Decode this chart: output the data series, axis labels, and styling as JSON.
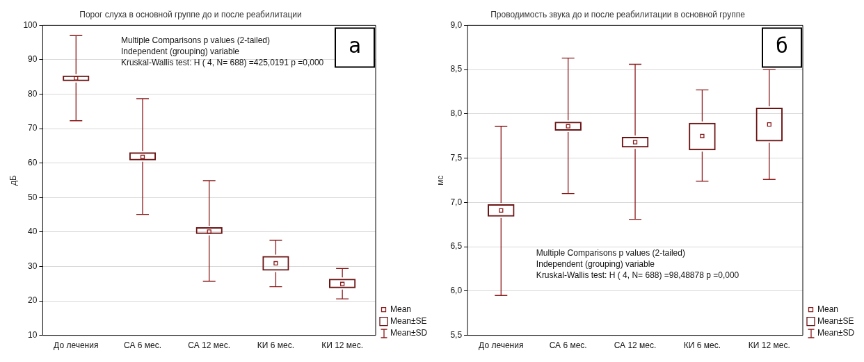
{
  "chart_data": [
    {
      "type": "bar",
      "title": "Порог слуха в основной группе до и после реабилитации",
      "ylabel": "дБ",
      "categories": [
        "До лечения",
        "СА 6 мес.",
        "СА 12 мес.",
        "КИ 6 мес.",
        "КИ 12 мес."
      ],
      "ylim": [
        10,
        100
      ],
      "yticks": [
        10,
        20,
        30,
        40,
        50,
        60,
        70,
        80,
        90,
        100
      ],
      "grid": "y",
      "legend": "bottom right",
      "annotations": [
        "а",
        "Multiple Comparisons p values (2-tailed)",
        "Independent (grouping) variable",
        "Kruskal-Wallis test: H ( 4, N= 688) =425,0191 p =0,000",
        "Mean±SD"
      ],
      "series": [
        {
          "name": "Mean",
          "type": "scatter",
          "marker": "square",
          "color": "#8b1a1a",
          "values": [
            84.6,
            61.8,
            40.1,
            30.9,
            24.9
          ],
          "errors": [
            [
              72.3,
              97
            ],
            [
              45.1,
              78.7
            ],
            [
              25.7,
              54.9
            ],
            [
              24.1,
              37.6
            ],
            [
              20.6,
              29.4
            ]
          ]
        },
        {
          "name": "Mean±SE",
          "type": "bar",
          "color": "#6b1414",
          "base": [
            83.8,
            60.8,
            39.4,
            28.8,
            23.7
          ],
          "values": [
            1.6,
            2.3,
            2.0,
            4.2,
            2.7
          ]
        }
      ]
    },
    {
      "type": "bar",
      "title": "Проводимость звука до и после реабилитации в основной группе",
      "ylabel": "мс",
      "categories": [
        "До лечения",
        "СА 6 мес.",
        "СА 12 мес.",
        "КИ 6 мес.",
        "КИ 12 мес."
      ],
      "ylim": [
        5.5,
        9
      ],
      "yticks": [
        {
          "value": 5.5,
          "label": "5,5"
        },
        {
          "value": 6,
          "label": "6,0"
        },
        {
          "value": 6.5,
          "label": "6,5"
        },
        {
          "value": 7,
          "label": "7,0"
        },
        {
          "value": 7.5,
          "label": "7,5"
        },
        {
          "value": 8,
          "label": "8,0"
        },
        {
          "value": 8.5,
          "label": "8,5"
        },
        {
          "value": 9,
          "label": "9,0"
        }
      ],
      "grid": "y",
      "legend": "bottom right",
      "annotations": [
        "б",
        "Multiple Comparisons p values (2-tailed)",
        "Independent (grouping) variable",
        "Kruskal-Wallis test: H ( 4, N= 688) =98,48878 p =0,000",
        "Mean±SD"
      ],
      "series": [
        {
          "name": "Mean",
          "type": "scatter",
          "marker": "square",
          "color": "#8b1a1a",
          "values": [
            6.91,
            7.86,
            7.68,
            7.75,
            7.88
          ],
          "errors": [
            [
              5.95,
              7.86
            ],
            [
              7.1,
              8.63
            ],
            [
              6.81,
              8.56
            ],
            [
              7.24,
              8.27
            ],
            [
              7.26,
              8.5
            ]
          ]
        },
        {
          "name": "Mean±SE",
          "type": "bar",
          "color": "#6b1414",
          "base": [
            6.84,
            7.81,
            7.62,
            7.59,
            7.69
          ],
          "values": [
            0.14,
            0.1,
            0.12,
            0.31,
            0.38
          ]
        }
      ]
    }
  ]
}
